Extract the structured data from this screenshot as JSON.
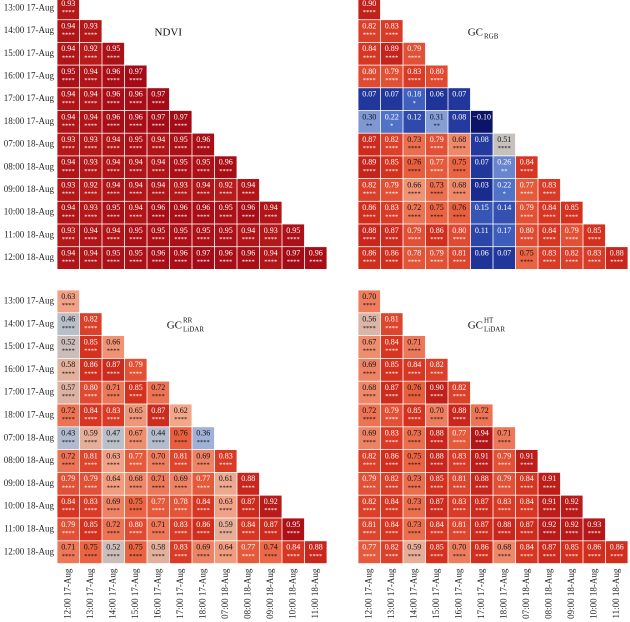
{
  "colorscale": [
    [
      -0.1,
      "#0b1466"
    ],
    [
      0.05,
      "#1c2f96"
    ],
    [
      0.2,
      "#4468c4"
    ],
    [
      0.35,
      "#9db0db"
    ],
    [
      0.5,
      "#c3c3c3"
    ],
    [
      0.62,
      "#f2a68a"
    ],
    [
      0.75,
      "#ea6443"
    ],
    [
      0.85,
      "#d5311f"
    ],
    [
      0.97,
      "#a50b16"
    ]
  ],
  "chart_data": [
    {
      "type": "heatmap",
      "title": "NDVI",
      "y_categories": [
        "13:00 17-Aug",
        "14:00 17-Aug",
        "15:00 17-Aug",
        "16:00 17-Aug",
        "17:00 17-Aug",
        "18:00 17-Aug",
        "07:00 18-Aug",
        "08:00 18-Aug",
        "09:00 18-Aug",
        "10:00 18-Aug",
        "11:00 18-Aug",
        "12:00 18-Aug"
      ],
      "values": [
        [
          0.93
        ],
        [
          0.94,
          0.93
        ],
        [
          0.94,
          0.92,
          0.95
        ],
        [
          0.95,
          0.94,
          0.96,
          0.97
        ],
        [
          0.94,
          0.94,
          0.96,
          0.96,
          0.97
        ],
        [
          0.94,
          0.94,
          0.96,
          0.96,
          0.97,
          0.97
        ],
        [
          0.93,
          0.93,
          0.94,
          0.95,
          0.94,
          0.95,
          0.96
        ],
        [
          0.94,
          0.93,
          0.94,
          0.94,
          0.94,
          0.95,
          0.95,
          0.96
        ],
        [
          0.93,
          0.92,
          0.94,
          0.94,
          0.94,
          0.93,
          0.94,
          0.92,
          0.94
        ],
        [
          0.94,
          0.93,
          0.95,
          0.94,
          0.96,
          0.96,
          0.96,
          0.95,
          0.96,
          0.94
        ],
        [
          0.93,
          0.94,
          0.94,
          0.95,
          0.95,
          0.95,
          0.95,
          0.95,
          0.94,
          0.93,
          0.95
        ],
        [
          0.94,
          0.94,
          0.95,
          0.95,
          0.96,
          0.96,
          0.97,
          0.96,
          0.96,
          0.94,
          0.97,
          0.96
        ]
      ],
      "significance": [
        [
          "****"
        ],
        [
          "****",
          "****"
        ],
        [
          "****",
          "****",
          "****"
        ],
        [
          "****",
          "****",
          "****",
          "****"
        ],
        [
          "****",
          "****",
          "****",
          "****",
          "****"
        ],
        [
          "****",
          "****",
          "****",
          "****",
          "****",
          "****"
        ],
        [
          "****",
          "****",
          "****",
          "****",
          "****",
          "****",
          "****"
        ],
        [
          "****",
          "****",
          "****",
          "****",
          "****",
          "****",
          "****",
          "****"
        ],
        [
          "****",
          "****",
          "****",
          "****",
          "****",
          "****",
          "****",
          "****",
          "****"
        ],
        [
          "****",
          "****",
          "****",
          "****",
          "****",
          "****",
          "****",
          "****",
          "****",
          "****"
        ],
        [
          "****",
          "****",
          "****",
          "****",
          "****",
          "****",
          "****",
          "****",
          "****",
          "****",
          "****"
        ],
        [
          "****",
          "****",
          "****",
          "****",
          "****",
          "****",
          "****",
          "****",
          "****",
          "****",
          "****",
          "****"
        ]
      ]
    },
    {
      "type": "heatmap",
      "title": "GC",
      "title_sub": "RGB",
      "values": [
        [
          0.9
        ],
        [
          0.82,
          0.83
        ],
        [
          0.84,
          0.89,
          0.79
        ],
        [
          0.8,
          0.79,
          0.83,
          0.8
        ],
        [
          0.07,
          0.07,
          0.18,
          0.06,
          0.07
        ],
        [
          0.3,
          0.22,
          0.12,
          0.31,
          0.08,
          -0.1
        ],
        [
          0.87,
          0.82,
          0.73,
          0.79,
          0.68,
          0.08,
          0.51
        ],
        [
          0.89,
          0.85,
          0.76,
          0.77,
          0.75,
          0.07,
          0.26,
          0.84
        ],
        [
          0.82,
          0.79,
          0.66,
          0.73,
          0.68,
          0.03,
          0.22,
          0.77,
          0.83
        ],
        [
          0.86,
          0.83,
          0.72,
          0.75,
          0.76,
          0.15,
          0.14,
          0.79,
          0.84,
          0.85
        ],
        [
          0.88,
          0.87,
          0.79,
          0.86,
          0.8,
          0.11,
          0.17,
          0.8,
          0.84,
          0.79,
          0.85
        ],
        [
          0.86,
          0.86,
          0.78,
          0.79,
          0.81,
          0.06,
          0.07,
          0.75,
          0.83,
          0.82,
          0.83,
          0.88
        ]
      ],
      "value_labels": [
        [
          "0.90"
        ],
        [
          "0.82",
          "0.83"
        ],
        [
          "0.84",
          "0.89",
          "0.79"
        ],
        [
          "0.80",
          "0.79",
          "0.83",
          "0.80"
        ],
        [
          "0.07",
          "0.07",
          "0.18",
          "0.06",
          "0.07"
        ],
        [
          "0.30",
          "0.22",
          "0.12",
          "0.31",
          "0.08",
          "−0.10"
        ],
        [
          "0.87",
          "0.82",
          "0.73",
          "0.79",
          "0.68",
          "0.08",
          "0.51"
        ],
        [
          "0.89",
          "0.85",
          "0.76",
          "0.77",
          "0.75",
          "0.07",
          "0.26",
          "0.84"
        ],
        [
          "0.82",
          "0.79",
          "0.66",
          "0.73",
          "0.68",
          "0.03",
          "0.22",
          "0.77",
          "0.83"
        ],
        [
          "0.86",
          "0.83",
          "0.72",
          "0.75",
          "0.76",
          "0.15",
          "0.14",
          "0.79",
          "0.84",
          "0.85"
        ],
        [
          "0.88",
          "0.87",
          "0.79",
          "0.86",
          "0.80",
          "0.11",
          "0.17",
          "0.80",
          "0.84",
          "0.79",
          "0.85"
        ],
        [
          "0.86",
          "0.86",
          "0.78",
          "0.79",
          "0.81",
          "0.06",
          "0.07",
          "0.75",
          "0.83",
          "0.82",
          "0.83",
          "0.88"
        ]
      ],
      "significance": [
        [
          "****"
        ],
        [
          "****",
          "****"
        ],
        [
          "****",
          "****",
          "****"
        ],
        [
          "****",
          "****",
          "****",
          "****"
        ],
        [
          null,
          null,
          "*",
          null,
          null
        ],
        [
          "**",
          "*",
          null,
          "**",
          null,
          null
        ],
        [
          "****",
          "****",
          "****",
          "****",
          "****",
          null,
          "****"
        ],
        [
          "****",
          "****",
          "****",
          "****",
          "****",
          null,
          "**",
          "****"
        ],
        [
          "****",
          "****",
          "****",
          "****",
          "****",
          null,
          "*",
          "****",
          "****"
        ],
        [
          "****",
          "****",
          "****",
          "****",
          "****",
          null,
          null,
          "****",
          "****",
          "****"
        ],
        [
          "****",
          "****",
          "****",
          "****",
          "****",
          null,
          null,
          "****",
          "****",
          "****",
          "****"
        ],
        [
          "****",
          "****",
          "****",
          "****",
          "****",
          null,
          null,
          "****",
          "****",
          "****",
          "****",
          "****"
        ]
      ]
    },
    {
      "type": "heatmap",
      "title": "GC",
      "title_sup": "RR",
      "title_sub": "LiDAR",
      "y_categories": [
        "13:00 17-Aug",
        "14:00 17-Aug",
        "15:00 17-Aug",
        "16:00 17-Aug",
        "17:00 17-Aug",
        "18:00 17-Aug",
        "07:00 18-Aug",
        "08:00 18-Aug",
        "09:00 18-Aug",
        "10:00 18-Aug",
        "11:00 18-Aug",
        "12:00 18-Aug"
      ],
      "x_categories": [
        "12:00 17-Aug",
        "13:00 17-Aug",
        "14:00 17-Aug",
        "15:00 17-Aug",
        "16:00 17-Aug",
        "17:00 17-Aug",
        "18:00 17-Aug",
        "07:00 18-Aug",
        "08:00 18-Aug",
        "09:00 18-Aug",
        "10:00 18-Aug",
        "11:00 18-Aug"
      ],
      "values": [
        [
          0.63
        ],
        [
          0.46,
          0.82
        ],
        [
          0.52,
          0.85,
          0.66
        ],
        [
          0.58,
          0.86,
          0.87,
          0.79
        ],
        [
          0.57,
          0.8,
          0.71,
          0.85,
          0.72
        ],
        [
          0.72,
          0.84,
          0.83,
          0.65,
          0.87,
          0.62
        ],
        [
          0.43,
          0.59,
          0.47,
          0.67,
          0.44,
          0.76,
          0.36
        ],
        [
          0.72,
          0.81,
          0.63,
          0.77,
          0.7,
          0.81,
          0.69,
          0.83
        ],
        [
          0.79,
          0.79,
          0.64,
          0.68,
          0.71,
          0.69,
          0.77,
          0.61,
          0.88
        ],
        [
          0.84,
          0.83,
          0.69,
          0.75,
          0.77,
          0.78,
          0.84,
          0.63,
          0.87,
          0.92
        ],
        [
          0.79,
          0.85,
          0.72,
          0.8,
          0.71,
          0.83,
          0.86,
          0.59,
          0.84,
          0.87,
          0.95
        ],
        [
          0.71,
          0.75,
          0.52,
          0.75,
          0.58,
          0.83,
          0.69,
          0.64,
          0.77,
          0.74,
          0.84,
          0.88
        ]
      ],
      "value_labels": [
        [
          "0.63"
        ],
        [
          "0.46",
          "0.82"
        ],
        [
          "0.52",
          "0.85",
          "0.66"
        ],
        [
          "0.58",
          "0.86",
          "0.87",
          "0.79"
        ],
        [
          "0.57",
          "0.80",
          "0.71",
          "0.85",
          "0.72"
        ],
        [
          "0.72",
          "0.84",
          "0.83",
          "0.65",
          "0.87",
          "0.62"
        ],
        [
          "0.43",
          "0.59",
          "0.47",
          "0.67",
          "0.44",
          "0.76",
          "0.36"
        ],
        [
          "0.72",
          "0.81",
          "0.63",
          "0.77",
          "0.70",
          "0.81",
          "0.69",
          "0.83"
        ],
        [
          "0.79",
          "0.79",
          "0.64",
          "0.68",
          "0.71",
          "0.69",
          "0.77",
          "0.61",
          "0.88"
        ],
        [
          "0.84",
          "0.83",
          "0.69",
          "0.75",
          "0.77",
          "0.78",
          "0.84",
          "0.63",
          "0.87",
          "0.92"
        ],
        [
          "0.79",
          "0.85",
          "0.72",
          "0.80",
          "0.71",
          "0.83",
          "0.86",
          "0.59",
          "0.84",
          "0.87",
          "0.95"
        ],
        [
          "0.71",
          "0.75",
          "0.52",
          "0.75",
          "0.58",
          "0.83",
          "0.69",
          "0.64",
          "0.77",
          "0.74",
          "0.84",
          "0.88"
        ]
      ],
      "significance": [
        [
          "****"
        ],
        [
          "****",
          "****"
        ],
        [
          "****",
          "****",
          "****"
        ],
        [
          "****",
          "****",
          "****",
          "****"
        ],
        [
          "****",
          "****",
          "****",
          "****",
          "****"
        ],
        [
          "****",
          "****",
          "****",
          "****",
          "****",
          "****"
        ],
        [
          "****",
          "****",
          "****",
          "****",
          "****",
          "****",
          "****"
        ],
        [
          "****",
          "****",
          "****",
          "****",
          "****",
          "****",
          "****",
          "****"
        ],
        [
          "****",
          "****",
          "****",
          "****",
          "****",
          "****",
          "****",
          "****",
          "****"
        ],
        [
          "****",
          "****",
          "****",
          "****",
          "****",
          "****",
          "****",
          "****",
          "****",
          "****"
        ],
        [
          "****",
          "****",
          "****",
          "****",
          "****",
          "****",
          "****",
          "****",
          "****",
          "****",
          "****"
        ],
        [
          "****",
          "****",
          "****",
          "****",
          "****",
          "****",
          "****",
          "****",
          "****",
          "****",
          "****",
          "****"
        ]
      ]
    },
    {
      "type": "heatmap",
      "title": "GC",
      "title_sup": "HT",
      "title_sub": "LiDAR",
      "x_categories": [
        "12:00 17-Aug",
        "13:00 17-Aug",
        "14:00 17-Aug",
        "15:00 17-Aug",
        "16:00 17-Aug",
        "17:00 17-Aug",
        "18:00 17-Aug",
        "07:00 18-Aug",
        "08:00 18-Aug",
        "09:00 18-Aug",
        "10:00 18-Aug",
        "11:00 18-Aug"
      ],
      "values": [
        [
          0.7
        ],
        [
          0.56,
          0.81
        ],
        [
          0.67,
          0.84,
          0.71
        ],
        [
          0.69,
          0.85,
          0.84,
          0.82
        ],
        [
          0.68,
          0.87,
          0.76,
          0.9,
          0.82
        ],
        [
          0.72,
          0.79,
          0.85,
          0.7,
          0.88,
          0.72
        ],
        [
          0.69,
          0.83,
          0.73,
          0.88,
          0.77,
          0.94,
          0.71
        ],
        [
          0.82,
          0.86,
          0.75,
          0.88,
          0.83,
          0.91,
          0.79,
          0.91
        ],
        [
          0.79,
          0.82,
          0.73,
          0.85,
          0.81,
          0.88,
          0.79,
          0.84,
          0.91
        ],
        [
          0.82,
          0.84,
          0.73,
          0.87,
          0.83,
          0.87,
          0.83,
          0.84,
          0.91,
          0.92
        ],
        [
          0.81,
          0.84,
          0.73,
          0.84,
          0.81,
          0.87,
          0.88,
          0.87,
          0.92,
          0.92,
          0.93
        ],
        [
          0.77,
          0.82,
          0.59,
          0.85,
          0.7,
          0.86,
          0.68,
          0.84,
          0.87,
          0.85,
          0.86,
          0.86
        ]
      ],
      "value_labels": [
        [
          "0.70"
        ],
        [
          "0.56",
          "0.81"
        ],
        [
          "0.67",
          "0.84",
          "0.71"
        ],
        [
          "0.69",
          "0.85",
          "0.84",
          "0.82"
        ],
        [
          "0.68",
          "0.87",
          "0.76",
          "0.90",
          "0.82"
        ],
        [
          "0.72",
          "0.79",
          "0.85",
          "0.70",
          "0.88",
          "0.72"
        ],
        [
          "0.69",
          "0.83",
          "0.73",
          "0.88",
          "0.77",
          "0.94",
          "0.71"
        ],
        [
          "0.82",
          "0.86",
          "0.75",
          "0.88",
          "0.83",
          "0.91",
          "0.79",
          "0.91"
        ],
        [
          "0.79",
          "0.82",
          "0.73",
          "0.85",
          "0.81",
          "0.88",
          "0.79",
          "0.84",
          "0.91"
        ],
        [
          "0.82",
          "0.84",
          "0.73",
          "0.87",
          "0.83",
          "0.87",
          "0.83",
          "0.84",
          "0.91",
          "0.92"
        ],
        [
          "0.81",
          "0.84",
          "0.73",
          "0.84",
          "0.81",
          "0.87",
          "0.88",
          "0.87",
          "0.92",
          "0.92",
          "0.93"
        ],
        [
          "0.77",
          "0.82",
          "0.59",
          "0.85",
          "0.70",
          "0.86",
          "0.68",
          "0.84",
          "0.87",
          "0.85",
          "0.86",
          "0.86"
        ]
      ],
      "significance": [
        [
          "****"
        ],
        [
          "****",
          "****"
        ],
        [
          "****",
          "****",
          "****"
        ],
        [
          "****",
          "****",
          "****",
          "****"
        ],
        [
          "****",
          "****",
          "****",
          "****",
          "****"
        ],
        [
          "****",
          "****",
          "****",
          "****",
          "****",
          "****"
        ],
        [
          "****",
          "****",
          "****",
          "****",
          "****",
          "****",
          "****"
        ],
        [
          "****",
          "****",
          "****",
          "****",
          "****",
          "****",
          "****",
          "****"
        ],
        [
          "****",
          "****",
          "****",
          "****",
          "****",
          "****",
          "****",
          "****",
          "****"
        ],
        [
          "****",
          "****",
          "****",
          "****",
          "****",
          "****",
          "****",
          "****",
          "****",
          "****"
        ],
        [
          "****",
          "****",
          "****",
          "****",
          "****",
          "****",
          "****",
          "****",
          "****",
          "****",
          "****"
        ],
        [
          "****",
          "****",
          "****",
          "****",
          "****",
          "****",
          "****",
          "****",
          "****",
          "****",
          "****",
          "****"
        ]
      ]
    }
  ]
}
